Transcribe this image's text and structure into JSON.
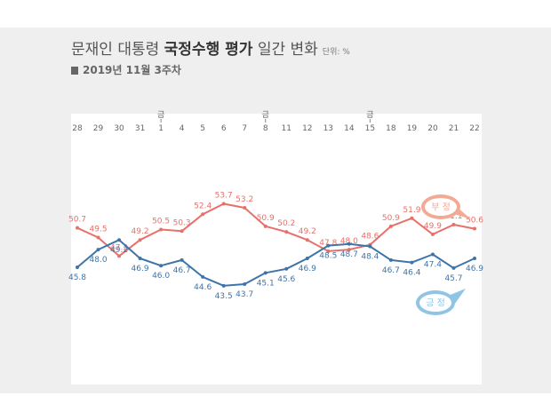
{
  "header": {
    "title_normal_1": "문재인 대통령 ",
    "title_bold": "국정수행 평가",
    "title_normal_2": " 일간 변화",
    "unit": "단위: %",
    "subtitle": "2019년 11월 3주차"
  },
  "chart_data": {
    "type": "line",
    "title": "문재인 대통령 국정수행 평가 일간 변화",
    "subtitle": "2019년 11월 3주차",
    "unit": "단위: %",
    "categories": [
      "28",
      "29",
      "30",
      "31",
      "1",
      "4",
      "5",
      "6",
      "7",
      "8",
      "11",
      "12",
      "13",
      "14",
      "15",
      "18",
      "19",
      "20",
      "21",
      "22"
    ],
    "friday_marker": "금",
    "friday_indices": [
      4,
      9,
      14
    ],
    "ylim": [
      35,
      60
    ],
    "grid": false,
    "series": [
      {
        "name": "부정",
        "color": "#e8706a",
        "values": [
          50.7,
          49.5,
          47.2,
          49.2,
          50.5,
          50.3,
          52.4,
          53.7,
          53.2,
          50.9,
          50.2,
          49.2,
          47.8,
          48.0,
          48.6,
          50.9,
          51.9,
          49.9,
          51.1,
          50.6
        ]
      },
      {
        "name": "긍정",
        "color": "#3f74a8",
        "values": [
          45.8,
          48.0,
          49.2,
          46.9,
          46.0,
          46.7,
          44.6,
          43.5,
          43.7,
          45.1,
          45.6,
          46.9,
          48.5,
          48.7,
          48.4,
          46.7,
          46.4,
          47.4,
          45.7,
          46.9
        ]
      }
    ],
    "legend": [
      {
        "label": "부 정",
        "color": "#f4a995",
        "placement": "right-upper"
      },
      {
        "label": "긍 정",
        "color": "#8fc4e4",
        "placement": "right-lower"
      }
    ]
  }
}
